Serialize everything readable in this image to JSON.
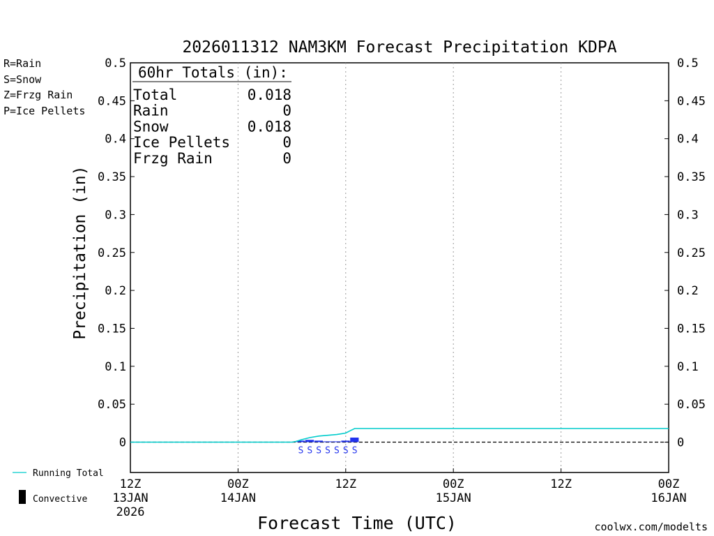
{
  "chart_data": {
    "type": "bar",
    "title": "2026011312 NAM3KM Forecast Precipitation KDPA",
    "xlabel": "Forecast Time (UTC)",
    "ylabel": "Precipitation (in)",
    "ylim": [
      -0.04,
      0.5
    ],
    "xlim": [
      0,
      60
    ],
    "yticks": [
      0,
      0.05,
      0.1,
      0.15,
      0.2,
      0.25,
      0.3,
      0.35,
      0.4,
      0.45,
      0.5
    ],
    "ytick_labels": [
      "0",
      "0.05",
      "0.1",
      "0.15",
      "0.2",
      "0.25",
      "0.3",
      "0.35",
      "0.4",
      "0.45",
      "0.5"
    ],
    "xticks": [
      {
        "hour": 0,
        "line1": "12Z",
        "line2": "13JAN",
        "line3": "2026"
      },
      {
        "hour": 12,
        "line1": "00Z",
        "line2": "14JAN",
        "line3": ""
      },
      {
        "hour": 24,
        "line1": "12Z",
        "line2": "",
        "line3": ""
      },
      {
        "hour": 36,
        "line1": "00Z",
        "line2": "15JAN",
        "line3": ""
      },
      {
        "hour": 48,
        "line1": "12Z",
        "line2": "",
        "line3": ""
      },
      {
        "hour": 60,
        "line1": "00Z",
        "line2": "16JAN",
        "line3": ""
      }
    ],
    "grid": true,
    "series": [
      {
        "name": "Running Total",
        "type": "line",
        "color": "#00cccc",
        "x": [
          0,
          18,
          18.5,
          19,
          20,
          21,
          22,
          23,
          23.5,
          24,
          24.5,
          25,
          60
        ],
        "values": [
          0,
          0,
          0.001,
          0.003,
          0.006,
          0.008,
          0.009,
          0.01,
          0.011,
          0.012,
          0.015,
          0.018,
          0.018
        ]
      },
      {
        "name": "Snow",
        "type": "bar",
        "color": "#2233ee",
        "x": [
          19,
          20,
          21,
          22,
          23,
          24,
          25
        ],
        "values": [
          0.002,
          0.003,
          0.002,
          0.001,
          0.001,
          0.002,
          0.006
        ],
        "markers": [
          "S",
          "S",
          "S",
          "S",
          "S",
          "S",
          "S"
        ]
      }
    ],
    "totals": {
      "header": "60hr Totals (in):",
      "rows": [
        {
          "label": "Total",
          "value": "0.018"
        },
        {
          "label": "Rain",
          "value": "0"
        },
        {
          "label": "Snow",
          "value": "0.018"
        },
        {
          "label": "Ice Pellets",
          "value": "0"
        },
        {
          "label": "Frzg Rain",
          "value": "0"
        }
      ]
    },
    "type_legend": [
      {
        "text": "R=Rain",
        "color": "#22dd22"
      },
      {
        "text": "S=Snow",
        "color": "#3344ff"
      },
      {
        "text": "Z=Frzg Rain",
        "color": "#ee8833"
      },
      {
        "text": "P=Ice Pellets",
        "color": "#ee2299"
      }
    ],
    "bottom_legend": [
      {
        "text": "Running Total",
        "color": "#00cccc",
        "symbol": "line"
      },
      {
        "text": "Convective",
        "color": "#000000",
        "symbol": "bar"
      }
    ],
    "credit": "coolwx.com/modelts",
    "credit_color": "#cc2222"
  }
}
